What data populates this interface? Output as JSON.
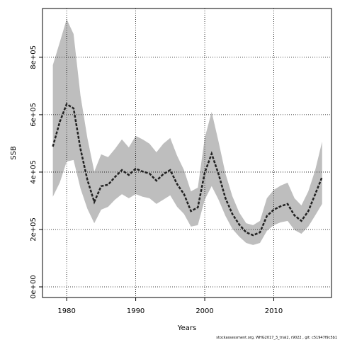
{
  "chart_data": {
    "type": "line",
    "xlabel": "Years",
    "ylabel": "SSB",
    "footnote": "stockassessment.org, WHG2017_3_trial2, r9022 , git: c51947f9c5b1",
    "x": [
      1978,
      1979,
      1980,
      1981,
      1982,
      1983,
      1984,
      1985,
      1986,
      1987,
      1988,
      1989,
      1990,
      1991,
      1992,
      1993,
      1994,
      1995,
      1996,
      1997,
      1998,
      1999,
      2000,
      2001,
      2002,
      2003,
      2004,
      2005,
      2006,
      2007,
      2008,
      2009,
      2010,
      2011,
      2012,
      2013,
      2014,
      2015,
      2016,
      2017
    ],
    "values": [
      489000,
      575000,
      637000,
      622000,
      481000,
      373000,
      296000,
      351000,
      356000,
      383000,
      407000,
      390000,
      412000,
      402000,
      395000,
      370000,
      393000,
      407000,
      358000,
      323000,
      264000,
      277000,
      398000,
      464000,
      393000,
      309000,
      254000,
      217000,
      190000,
      180000,
      190000,
      247000,
      269000,
      281000,
      289000,
      249000,
      230000,
      264000,
      323000,
      383000
    ],
    "upper": [
      773000,
      852000,
      933000,
      881000,
      667000,
      519000,
      402000,
      462000,
      452000,
      481000,
      514000,
      486000,
      526000,
      514000,
      499000,
      469000,
      499000,
      519000,
      457000,
      407000,
      333000,
      346000,
      519000,
      610000,
      506000,
      395000,
      316000,
      259000,
      222000,
      215000,
      230000,
      309000,
      338000,
      353000,
      363000,
      309000,
      284000,
      333000,
      407000,
      506000
    ],
    "lower": [
      314000,
      363000,
      437000,
      442000,
      343000,
      272000,
      222000,
      269000,
      279000,
      304000,
      323000,
      309000,
      323000,
      314000,
      309000,
      289000,
      304000,
      319000,
      279000,
      254000,
      210000,
      215000,
      304000,
      351000,
      304000,
      247000,
      202000,
      175000,
      153000,
      146000,
      153000,
      195000,
      215000,
      225000,
      230000,
      198000,
      185000,
      210000,
      249000,
      289000
    ],
    "color": "#222222",
    "band_color": "#bebebe",
    "xlim": [
      1976.5,
      2018.36
    ],
    "ylim": [
      -37000,
      970000
    ],
    "xticks": [
      1980,
      1990,
      2000,
      2010
    ],
    "yticks": [
      {
        "value": 0,
        "label": "0e+00"
      },
      {
        "value": 200000,
        "label": "2e+05"
      },
      {
        "value": 400000,
        "label": "4e+05"
      },
      {
        "value": 600000,
        "label": "6e+05"
      },
      {
        "value": 800000,
        "label": "8e+05"
      }
    ],
    "grid": true
  }
}
